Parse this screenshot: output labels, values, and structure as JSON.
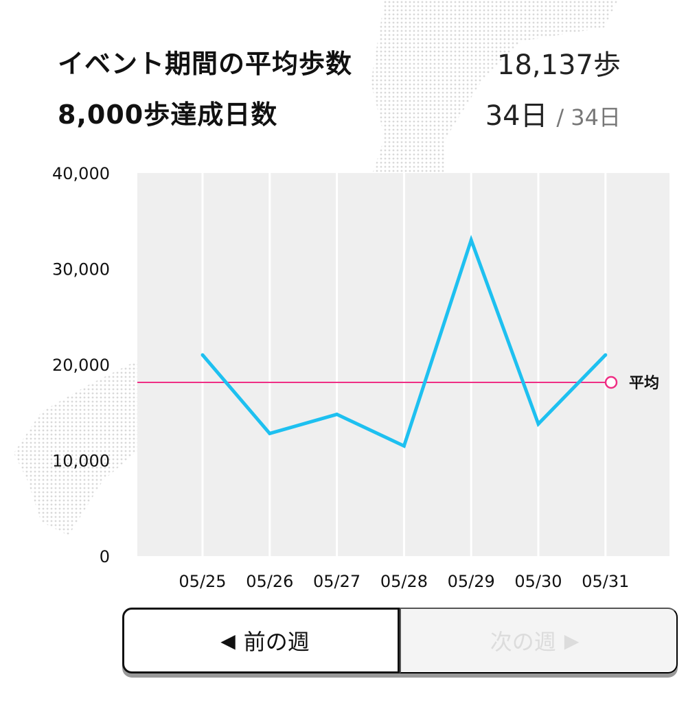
{
  "stats": {
    "avg_label": "イベント期間の平均歩数",
    "avg_value": "18,137歩",
    "goal_label": "8,000歩達成日数",
    "goal_value": "34日",
    "goal_total": "/ 34日"
  },
  "chart_data": {
    "type": "line",
    "categories": [
      "05/25",
      "05/26",
      "05/27",
      "05/28",
      "05/29",
      "05/30",
      "05/31"
    ],
    "series": [
      {
        "name": "",
        "values": [
          21000,
          12800,
          14800,
          11500,
          33000,
          13800,
          21000
        ],
        "color": "#1ec0f0"
      }
    ],
    "average": {
      "label": "平均",
      "value": 18137,
      "color": "#ef2e84"
    },
    "ylim": [
      0,
      40000
    ],
    "yticks": [
      "0",
      "10,000",
      "20,000",
      "30,000",
      "40,000"
    ],
    "ytick_values": [
      0,
      10000,
      20000,
      30000,
      40000
    ],
    "grid": "vertical",
    "plot_background": "#efefef"
  },
  "nav": {
    "prev_label": "前の週",
    "next_label": "次の週"
  }
}
